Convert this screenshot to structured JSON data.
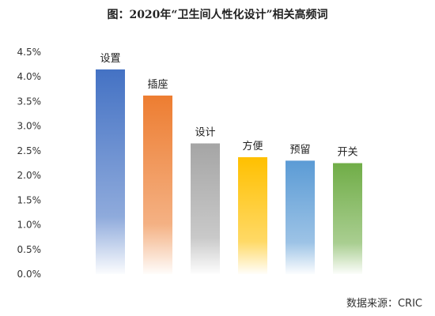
{
  "chart_data": {
    "type": "bar",
    "title": "图：2020年“卫生间人性化设计”相关高频词",
    "source": "数据来源：CRIC",
    "xlabel": "",
    "ylabel": "",
    "categories": [
      "设置",
      "插座",
      "设计",
      "方便",
      "预留",
      "开关"
    ],
    "values": [
      4.15,
      3.62,
      2.65,
      2.37,
      2.3,
      2.25
    ],
    "yticks": [
      "0.0%",
      "0.5%",
      "1.0%",
      "1.5%",
      "2.0%",
      "2.5%",
      "3.0%",
      "3.5%",
      "4.0%",
      "4.5%"
    ],
    "ylim": [
      0,
      4.5
    ],
    "grid": false,
    "legend": "none",
    "colors": [
      "#4472C4",
      "#ED7D31",
      "#A5A5A5",
      "#FFC000",
      "#5B9BD5",
      "#70AD47"
    ]
  }
}
